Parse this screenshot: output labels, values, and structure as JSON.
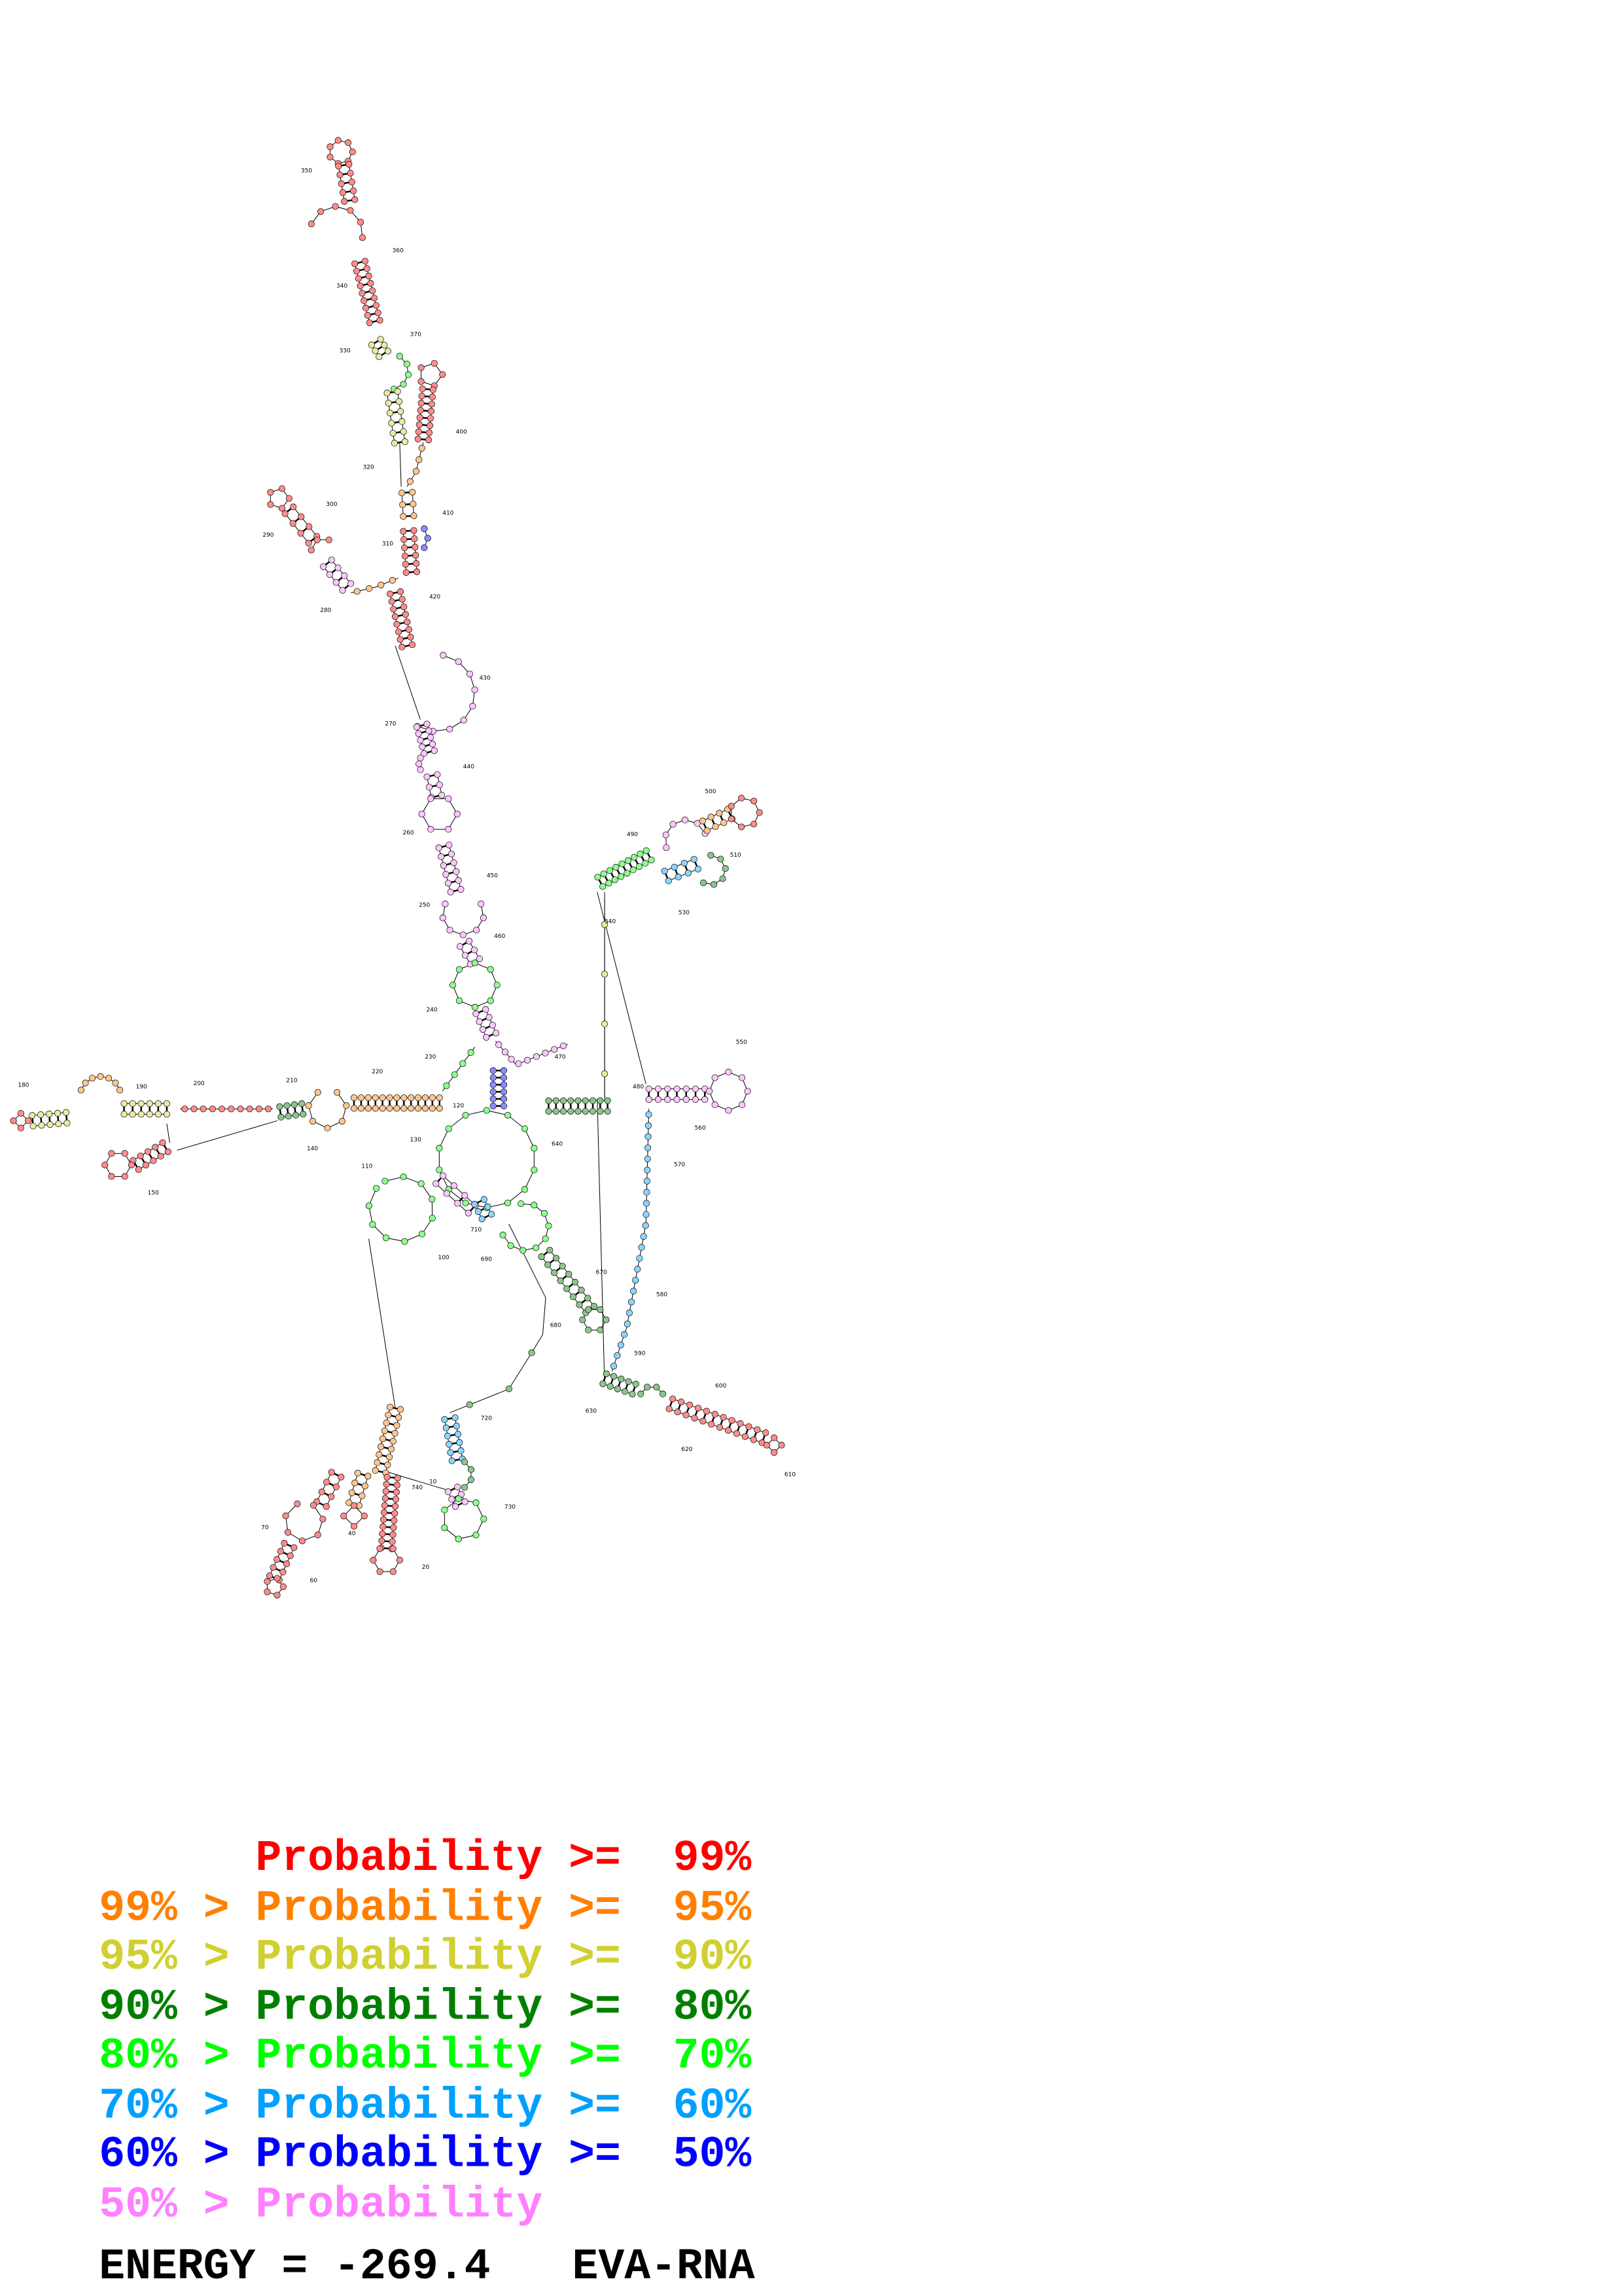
{
  "legend": [
    {
      "text": "      Probability >=  99%",
      "color": "#ff0000"
    },
    {
      "text": "99% > Probability >=  95%",
      "color": "#ff8000"
    },
    {
      "text": "95% > Probability >=  90%",
      "color": "#d0d030"
    },
    {
      "text": "90% > Probability >=  80%",
      "color": "#007f00"
    },
    {
      "text": "80% > Probability >=  70%",
      "color": "#00ff00"
    },
    {
      "text": "70% > Probability >=  60%",
      "color": "#00a0ff"
    },
    {
      "text": "60% > Probability >=  50%",
      "color": "#0000ff"
    },
    {
      "text": "50% > Probability",
      "color": "#ff80ff"
    }
  ],
  "footer": {
    "energy": "ENERGY = -269.4",
    "program": "EVA-RNA"
  },
  "position_labels": [
    "10",
    "20",
    "40",
    "60",
    "70",
    "100",
    "110",
    "120",
    "130",
    "140",
    "150",
    "180",
    "190",
    "200",
    "210",
    "220",
    "230",
    "240",
    "250",
    "260",
    "270",
    "280",
    "290",
    "300",
    "310",
    "320",
    "330",
    "340",
    "350",
    "360",
    "370",
    "400",
    "410",
    "420",
    "430",
    "440",
    "450",
    "460",
    "470",
    "480",
    "490",
    "500",
    "510",
    "530",
    "540",
    "550",
    "560",
    "570",
    "580",
    "590",
    "600",
    "610",
    "620",
    "630",
    "640",
    "670",
    "680",
    "690",
    "710",
    "720",
    "730",
    "740"
  ]
}
